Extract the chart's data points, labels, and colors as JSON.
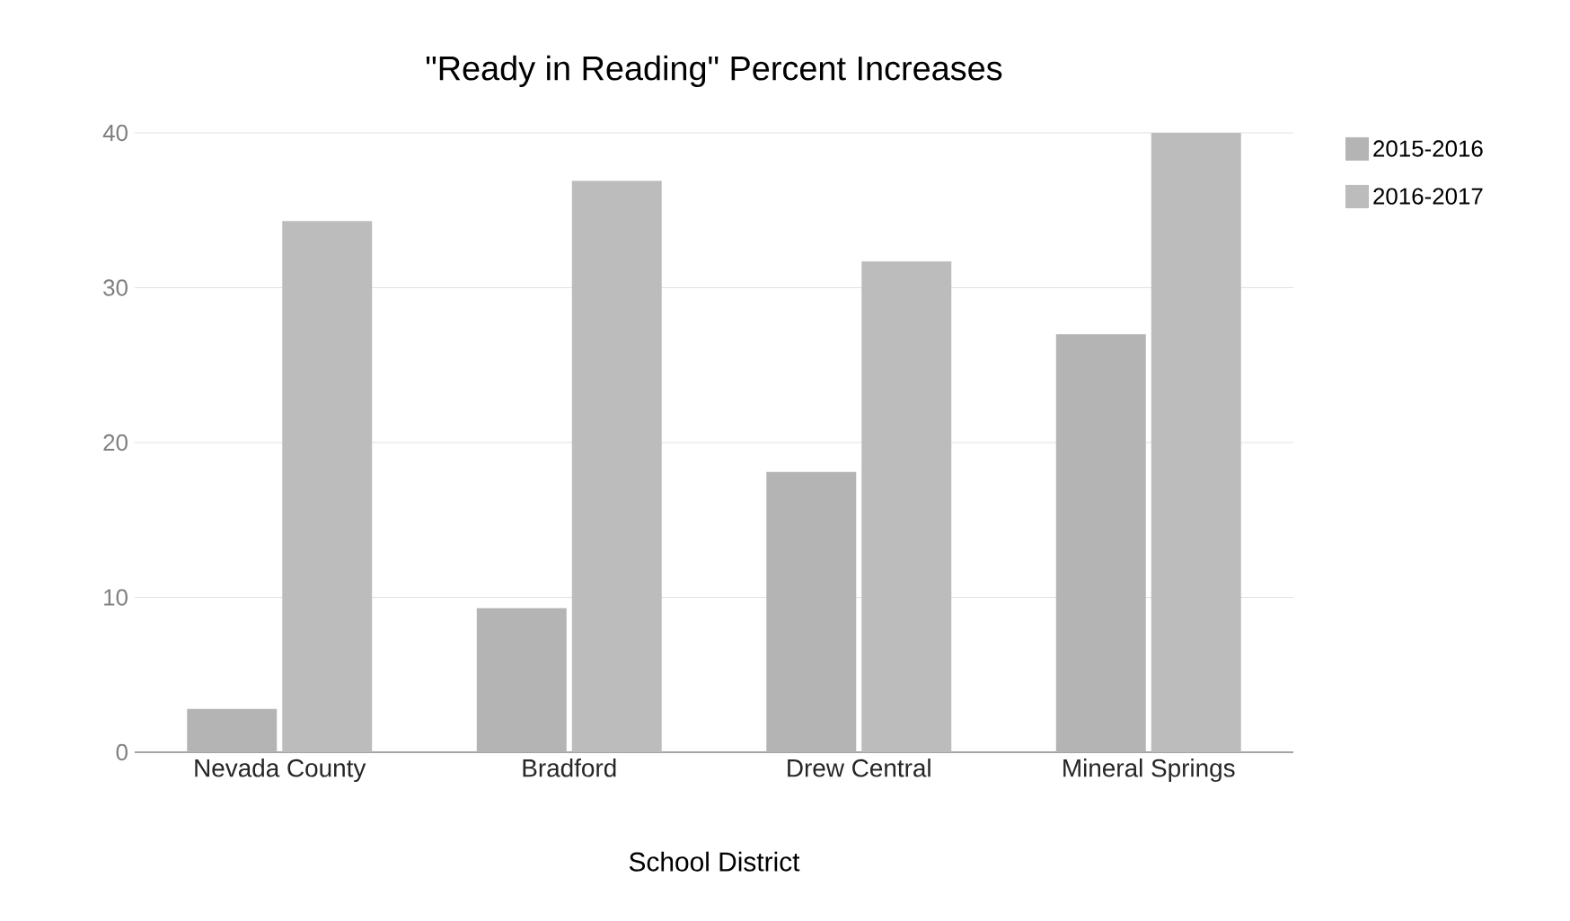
{
  "chart_data": {
    "type": "bar",
    "title": "\"Ready in Reading\" Percent Increases",
    "xlabel": "School District",
    "categories": [
      "Nevada County",
      "Bradford",
      "Drew Central",
      "Mineral Springs"
    ],
    "series": [
      {
        "name": "2015-2016",
        "color": "#b4b4b4",
        "values": [
          2.8,
          9.3,
          18.1,
          27.0
        ]
      },
      {
        "name": "2016-2017",
        "color": "#bcbcbc",
        "values": [
          34.3,
          36.9,
          31.7,
          40
        ]
      }
    ],
    "ylim": [
      0,
      40
    ],
    "yticks": [
      0,
      10,
      20,
      30,
      40
    ],
    "grid": "y",
    "legend": "top right"
  }
}
